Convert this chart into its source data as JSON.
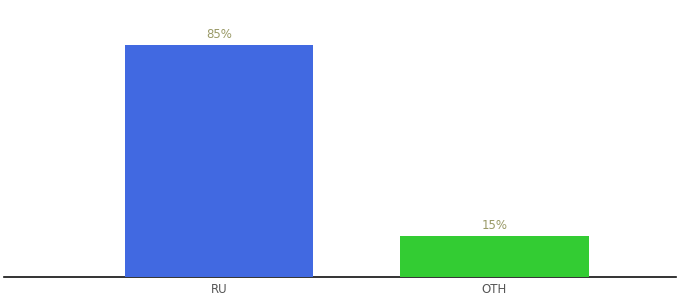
{
  "categories": [
    "RU",
    "OTH"
  ],
  "values": [
    85,
    15
  ],
  "bar_colors": [
    "#4169E1",
    "#33CC33"
  ],
  "label_colors": [
    "#999966",
    "#999966"
  ],
  "bar_width": 0.28,
  "ylim": [
    0,
    100
  ],
  "xlim": [
    0,
    1.0
  ],
  "x_positions": [
    0.32,
    0.73
  ],
  "background_color": "#ffffff",
  "label_fontsize": 8.5,
  "tick_fontsize": 8.5
}
